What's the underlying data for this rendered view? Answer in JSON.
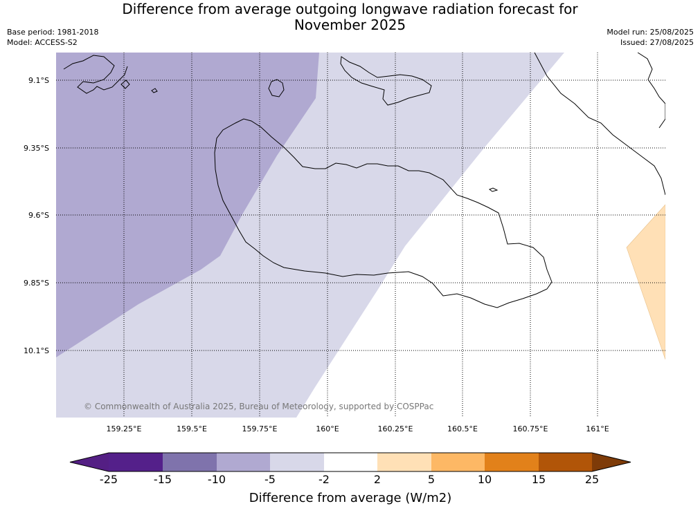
{
  "title": {
    "line1": "Difference from average outgoing longwave radiation forecast for",
    "line2": "November 2025"
  },
  "meta": {
    "base_period": "Base period: 1981-2018",
    "model": "Model: ACCESS-S2",
    "model_run": "Model run: 25/08/2025",
    "issued": "Issued: 27/08/2025"
  },
  "map": {
    "lat_labels": [
      "9.1°S",
      "9.35°S",
      "9.6°S",
      "9.85°S",
      "10.1°S"
    ],
    "lon_labels": [
      "159.25°E",
      "159.5°E",
      "159.75°E",
      "160°E",
      "160.25°E",
      "160.5°E",
      "160.75°E",
      "161°E"
    ],
    "copyright": "© Commonwealth of Australia 2025, Bureau of Meteorology, supported by COSPPac",
    "region_colors": {
      "minus10_to_minus5": "#b0a9d1",
      "minus5_to_minus2": "#d8d8e9",
      "neutral": "#ffffff",
      "plus2_to_plus5": "#ffe0b6"
    }
  },
  "colorbar": {
    "label": "Difference from average (W/m2)",
    "ticks": [
      "-25",
      "-15",
      "-10",
      "-5",
      "-2",
      "2",
      "5",
      "10",
      "15",
      "25"
    ],
    "colors": [
      "#541f84",
      "#54208a",
      "#7f73ac",
      "#b0a9d1",
      "#d8d8e9",
      "#ffffff",
      "#ffe0b6",
      "#fdb865",
      "#e2811a",
      "#b15508",
      "#7e3b08"
    ]
  }
}
